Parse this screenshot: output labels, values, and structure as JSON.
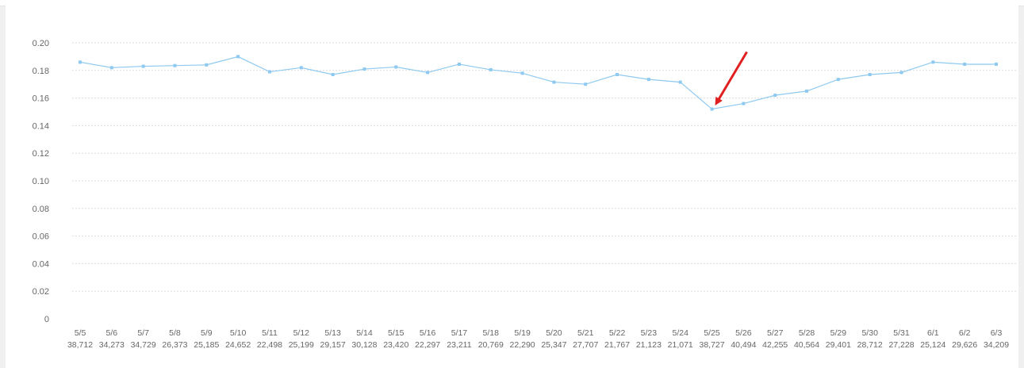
{
  "chart_data": {
    "type": "line",
    "title": "",
    "xlabel": "",
    "ylabel": "",
    "ylim": [
      0,
      0.2
    ],
    "yticks": [
      "0",
      "0.02",
      "0.04",
      "0.06",
      "0.08",
      "0.10",
      "0.12",
      "0.14",
      "0.16",
      "0.18",
      "0.20"
    ],
    "ytick_values": [
      0,
      0.02,
      0.04,
      0.06,
      0.08,
      0.1,
      0.12,
      0.14,
      0.16,
      0.18,
      0.2
    ],
    "grid": true,
    "line_color": "#8ec9f0",
    "arrow_color": "#e02020",
    "categories": [
      "5/5",
      "5/6",
      "5/7",
      "5/8",
      "5/9",
      "5/10",
      "5/11",
      "5/12",
      "5/13",
      "5/14",
      "5/15",
      "5/16",
      "5/17",
      "5/18",
      "5/19",
      "5/20",
      "5/21",
      "5/22",
      "5/23",
      "5/24",
      "5/25",
      "5/26",
      "5/27",
      "5/28",
      "5/29",
      "5/30",
      "5/31",
      "6/1",
      "6/2",
      "6/3"
    ],
    "sublabels": [
      "38,712",
      "34,273",
      "34,729",
      "26,373",
      "25,185",
      "24,652",
      "22,498",
      "25,199",
      "29,157",
      "30,128",
      "23,420",
      "22,297",
      "23,211",
      "20,769",
      "22,290",
      "25,347",
      "27,707",
      "21,767",
      "21,123",
      "21,071",
      "38,727",
      "40,494",
      "42,255",
      "40,564",
      "29,401",
      "28,712",
      "27,228",
      "25,124",
      "29,626",
      "34,209"
    ],
    "values": [
      0.186,
      0.182,
      0.183,
      0.1835,
      0.184,
      0.19,
      0.179,
      0.182,
      0.177,
      0.181,
      0.1825,
      0.1785,
      0.1845,
      0.1805,
      0.178,
      0.1715,
      0.17,
      0.177,
      0.1735,
      0.1715,
      0.152,
      0.156,
      0.162,
      0.165,
      0.1735,
      0.177,
      0.1785,
      0.186,
      0.1845,
      0.1845
    ],
    "annotation": {
      "type": "arrow",
      "target_index": 20
    }
  }
}
